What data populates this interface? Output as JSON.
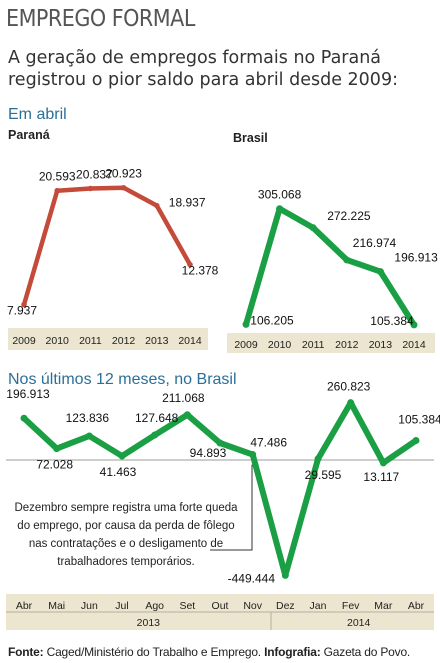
{
  "header": {
    "title": "EMPREGO FORMAL",
    "subtitle_line1": "A geração de empregos formais no Paraná",
    "subtitle_line2": "registrou o pior saldo para abril desde 2009:"
  },
  "section_april": "Em abril",
  "section_12m": "Nos últimos 12 meses, no Brasil",
  "annotation": "Dezembro sempre registra uma forte queda\ndo emprego, por causa da perda de fôlego\nnas contratações e o desligamento de\ntrabalhadores temporários.",
  "footer": {
    "source_label": "Fonte:",
    "source_text": " Caged/Ministério do Trabalho e Emprego. ",
    "infographic_label": "Infografia:",
    "infographic_text": " Gazeta do Povo."
  },
  "colors": {
    "parana_line": "#c44a3a",
    "brasil_line": "#1a9f45",
    "axis_band": "#ece5cf",
    "section_heading": "#2b6f98"
  },
  "chart_data": [
    {
      "type": "line",
      "title": "Paraná",
      "x": [
        "2009",
        "2010",
        "2011",
        "2012",
        "2013",
        "2014"
      ],
      "series": [
        {
          "values": [
            7937,
            20593,
            20837,
            20923,
            18937,
            12378
          ]
        }
      ],
      "data_labels": [
        "7.937",
        "20.593",
        "20.837",
        "20.923",
        "18.937",
        "12.378"
      ],
      "ylim": [
        7000,
        22000
      ]
    },
    {
      "type": "line",
      "title": "Brasil",
      "x": [
        "2009",
        "2010",
        "2011",
        "2012",
        "2013",
        "2014"
      ],
      "series": [
        {
          "values": [
            106205,
            305068,
            272225,
            216974,
            196913,
            105384
          ]
        }
      ],
      "data_labels": [
        "106.205",
        "305.068",
        "272.225",
        "216.974",
        "196.913",
        "105.384"
      ],
      "ylim": [
        100000,
        320000
      ]
    },
    {
      "type": "line",
      "title": "Nos últimos 12 meses, no Brasil",
      "x": [
        "Abr",
        "Mai",
        "Jun",
        "Jul",
        "Ago",
        "Set",
        "Out",
        "Nov",
        "Dez",
        "Jan",
        "Fev",
        "Mar",
        "Abr"
      ],
      "year_labels": [
        "2013",
        "2014"
      ],
      "series": [
        {
          "values": [
            196913,
            72028,
            123836,
            41463,
            127648,
            211068,
            94893,
            47486,
            -449444,
            29595,
            260823,
            13117,
            105384
          ]
        }
      ],
      "data_labels": [
        "196.913",
        "72.028",
        "123.836",
        "41.463",
        "127.648",
        "211.068",
        "94.893",
        "47.486",
        "-449.444",
        "29.595",
        "260.823",
        "13.117",
        "105.384"
      ],
      "ylim": [
        -460000,
        280000
      ]
    }
  ]
}
